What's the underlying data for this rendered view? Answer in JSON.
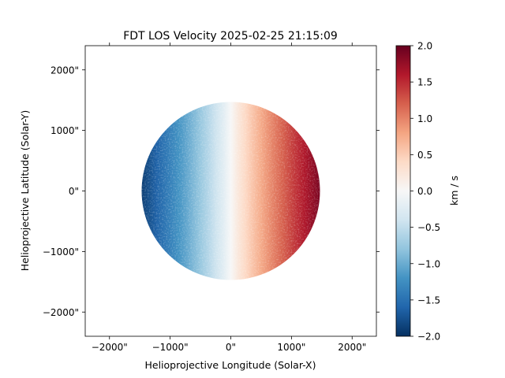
{
  "chart_data": {
    "type": "heatmap",
    "title": "FDT LOS Velocity 2025-02-25 21:15:09",
    "xlabel": "Helioprojective Longitude (Solar-X)",
    "ylabel": "Helioprojective Latitude (Solar-Y)",
    "xlim": [
      -2400,
      2400
    ],
    "ylim": [
      -2400,
      2400
    ],
    "x_ticks": [
      -2000,
      -1000,
      0,
      1000,
      2000
    ],
    "x_tick_labels": [
      "−2000\"",
      "−1000\"",
      "0\"",
      "1000\"",
      "2000\""
    ],
    "y_ticks": [
      -2000,
      -1000,
      0,
      1000,
      2000
    ],
    "y_tick_labels": [
      "−2000\"",
      "−1000\"",
      "0\"",
      "1000\"",
      "2000\""
    ],
    "disk": {
      "center_x": 0,
      "center_y": 0,
      "radius": 1470
    },
    "colorbar": {
      "label": "km / s",
      "colormap": "RdBu_r",
      "vmin": -2.0,
      "vmax": 2.0,
      "ticks": [
        -2.0,
        -1.5,
        -1.0,
        -0.5,
        0.0,
        0.5,
        1.0,
        1.5,
        2.0
      ],
      "tick_labels": [
        "−2.0",
        "−1.5",
        "−1.0",
        "−0.5",
        "0.0",
        "0.5",
        "1.0",
        "1.5",
        "2.0"
      ],
      "colors": [
        "#053061",
        "#2166ac",
        "#4393c3",
        "#92c5de",
        "#d1e5f0",
        "#f7f7f7",
        "#fddbc7",
        "#f4a582",
        "#d6604d",
        "#b2182b",
        "#67001f"
      ]
    },
    "velocity_field": {
      "west_limb": -1.9,
      "east_limb": 1.9,
      "center": 0.0
    }
  }
}
